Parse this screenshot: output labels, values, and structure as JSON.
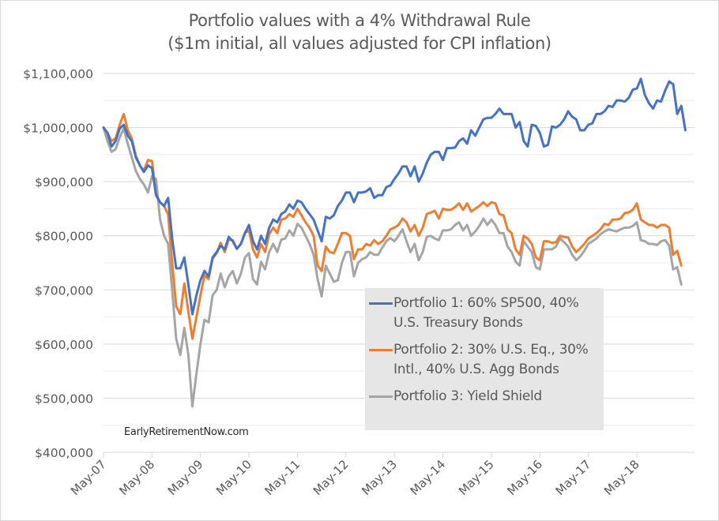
{
  "chart_data": {
    "type": "line",
    "title": "Portfolio values with a 4% Withdrawal Rule",
    "subtitle": "($1m initial, all values adjusted for CPI inflation)",
    "xlabel": "",
    "ylabel": "",
    "ylim": [
      400000,
      1100000
    ],
    "y_ticks": [
      400000,
      500000,
      600000,
      700000,
      800000,
      900000,
      1000000,
      1100000
    ],
    "y_tick_labels": [
      "$400,000",
      "$500,000",
      "$600,000",
      "$700,000",
      "$800,000",
      "$900,000",
      "$1,000,000",
      "$1,100,000"
    ],
    "x_start": "May-07",
    "x_frequency": "monthly",
    "x_tick_labels": [
      "May-07",
      "May-08",
      "May-09",
      "May-10",
      "May-11",
      "May-12",
      "May-13",
      "May-14",
      "May-15",
      "May-16",
      "May-17",
      "May-18"
    ],
    "grid": true,
    "legend_position": "center-right",
    "watermark": "EarlyRetirementNow.com",
    "series": [
      {
        "name": "Portfolio 1: 60% SP500, 40% U.S. Treasury Bonds",
        "color": "#4472c4",
        "values": [
          1000000,
          990000,
          965000,
          975000,
          998000,
          1005000,
          985000,
          975000,
          945000,
          930000,
          918000,
          930000,
          925000,
          875000,
          862000,
          855000,
          870000,
          795000,
          740000,
          740000,
          760000,
          710000,
          655000,
          690000,
          718000,
          735000,
          725000,
          760000,
          770000,
          782000,
          775000,
          798000,
          790000,
          776000,
          785000,
          805000,
          820000,
          790000,
          775000,
          800000,
          785000,
          815000,
          830000,
          825000,
          840000,
          845000,
          858000,
          850000,
          865000,
          862000,
          850000,
          840000,
          830000,
          810000,
          790000,
          835000,
          832000,
          838000,
          855000,
          865000,
          880000,
          880000,
          862000,
          880000,
          880000,
          882000,
          888000,
          870000,
          875000,
          875000,
          890000,
          893000,
          905000,
          915000,
          928000,
          928000,
          910000,
          928000,
          900000,
          915000,
          935000,
          950000,
          955000,
          955000,
          940000,
          962000,
          962000,
          963000,
          975000,
          980000,
          970000,
          995000,
          985000,
          1000000,
          1015000,
          1018000,
          1018000,
          1025000,
          1035000,
          1025000,
          1025000,
          1025000,
          1000000,
          1010000,
          975000,
          965000,
          1005000,
          1003000,
          990000,
          965000,
          968000,
          1002000,
          1000000,
          1005000,
          1015000,
          1030000,
          1020000,
          1015000,
          995000,
          995000,
          1005000,
          1008000,
          1025000,
          1025000,
          1030000,
          1040000,
          1038000,
          1050000,
          1050000,
          1048000,
          1055000,
          1070000,
          1072000,
          1090000,
          1060000,
          1045000,
          1035000,
          1050000,
          1048000,
          1068000,
          1085000,
          1080000,
          1025000,
          1040000,
          995000
        ]
      },
      {
        "name": "Portfolio 2: 30% U.S. Eq., 30% Intl., 40% U.S. Agg Bonds",
        "color": "#ed7d31",
        "values": [
          1000000,
          990000,
          975000,
          980000,
          1005000,
          1025000,
          995000,
          980000,
          948000,
          930000,
          920000,
          940000,
          938000,
          875000,
          862000,
          855000,
          840000,
          750000,
          670000,
          655000,
          712000,
          660000,
          610000,
          650000,
          690000,
          727000,
          720000,
          758000,
          768000,
          787000,
          770000,
          793000,
          792000,
          776000,
          785000,
          805000,
          810000,
          775000,
          760000,
          785000,
          770000,
          803000,
          815000,
          805000,
          830000,
          832000,
          840000,
          835000,
          850000,
          838000,
          825000,
          815000,
          800000,
          745000,
          735000,
          780000,
          770000,
          768000,
          785000,
          805000,
          805000,
          800000,
          757000,
          775000,
          775000,
          785000,
          782000,
          792000,
          785000,
          790000,
          800000,
          812000,
          815000,
          820000,
          832000,
          825000,
          808000,
          820000,
          800000,
          815000,
          840000,
          843000,
          846000,
          832000,
          850000,
          848000,
          848000,
          853000,
          860000,
          848000,
          860000,
          845000,
          850000,
          855000,
          862000,
          855000,
          862000,
          860000,
          840000,
          838000,
          812000,
          805000,
          775000,
          765000,
          800000,
          795000,
          785000,
          760000,
          755000,
          790000,
          790000,
          787000,
          788000,
          800000,
          798000,
          797000,
          780000,
          770000,
          777000,
          785000,
          795000,
          800000,
          805000,
          812000,
          822000,
          820000,
          830000,
          830000,
          832000,
          842000,
          843000,
          848000,
          860000,
          830000,
          825000,
          820000,
          820000,
          815000,
          820000,
          820000,
          815000,
          765000,
          772000,
          745000
        ]
      },
      {
        "name": "Portfolio 3: Yield Shield",
        "color": "#a5a5a5",
        "values": [
          1000000,
          975000,
          955000,
          960000,
          982000,
          998000,
          970000,
          945000,
          920000,
          905000,
          895000,
          880000,
          910000,
          905000,
          830000,
          800000,
          785000,
          700000,
          610000,
          580000,
          630000,
          580000,
          485000,
          545000,
          600000,
          645000,
          640000,
          690000,
          700000,
          730000,
          705000,
          725000,
          735000,
          712000,
          730000,
          760000,
          768000,
          720000,
          710000,
          752000,
          738000,
          770000,
          785000,
          770000,
          793000,
          795000,
          810000,
          800000,
          822000,
          815000,
          800000,
          785000,
          765000,
          720000,
          688000,
          745000,
          730000,
          715000,
          718000,
          750000,
          770000,
          770000,
          725000,
          750000,
          757000,
          760000,
          770000,
          765000,
          765000,
          778000,
          790000,
          796000,
          790000,
          800000,
          812000,
          790000,
          770000,
          785000,
          755000,
          770000,
          798000,
          800000,
          795000,
          792000,
          810000,
          810000,
          812000,
          820000,
          825000,
          810000,
          820000,
          800000,
          808000,
          818000,
          832000,
          820000,
          830000,
          820000,
          805000,
          805000,
          780000,
          770000,
          752000,
          745000,
          790000,
          780000,
          770000,
          742000,
          738000,
          775000,
          775000,
          775000,
          780000,
          795000,
          788000,
          780000,
          765000,
          755000,
          762000,
          772000,
          785000,
          790000,
          795000,
          803000,
          808000,
          812000,
          810000,
          808000,
          812000,
          815000,
          815000,
          818000,
          825000,
          792000,
          790000,
          785000,
          785000,
          783000,
          790000,
          792000,
          782000,
          738000,
          742000,
          710000
        ]
      }
    ]
  }
}
